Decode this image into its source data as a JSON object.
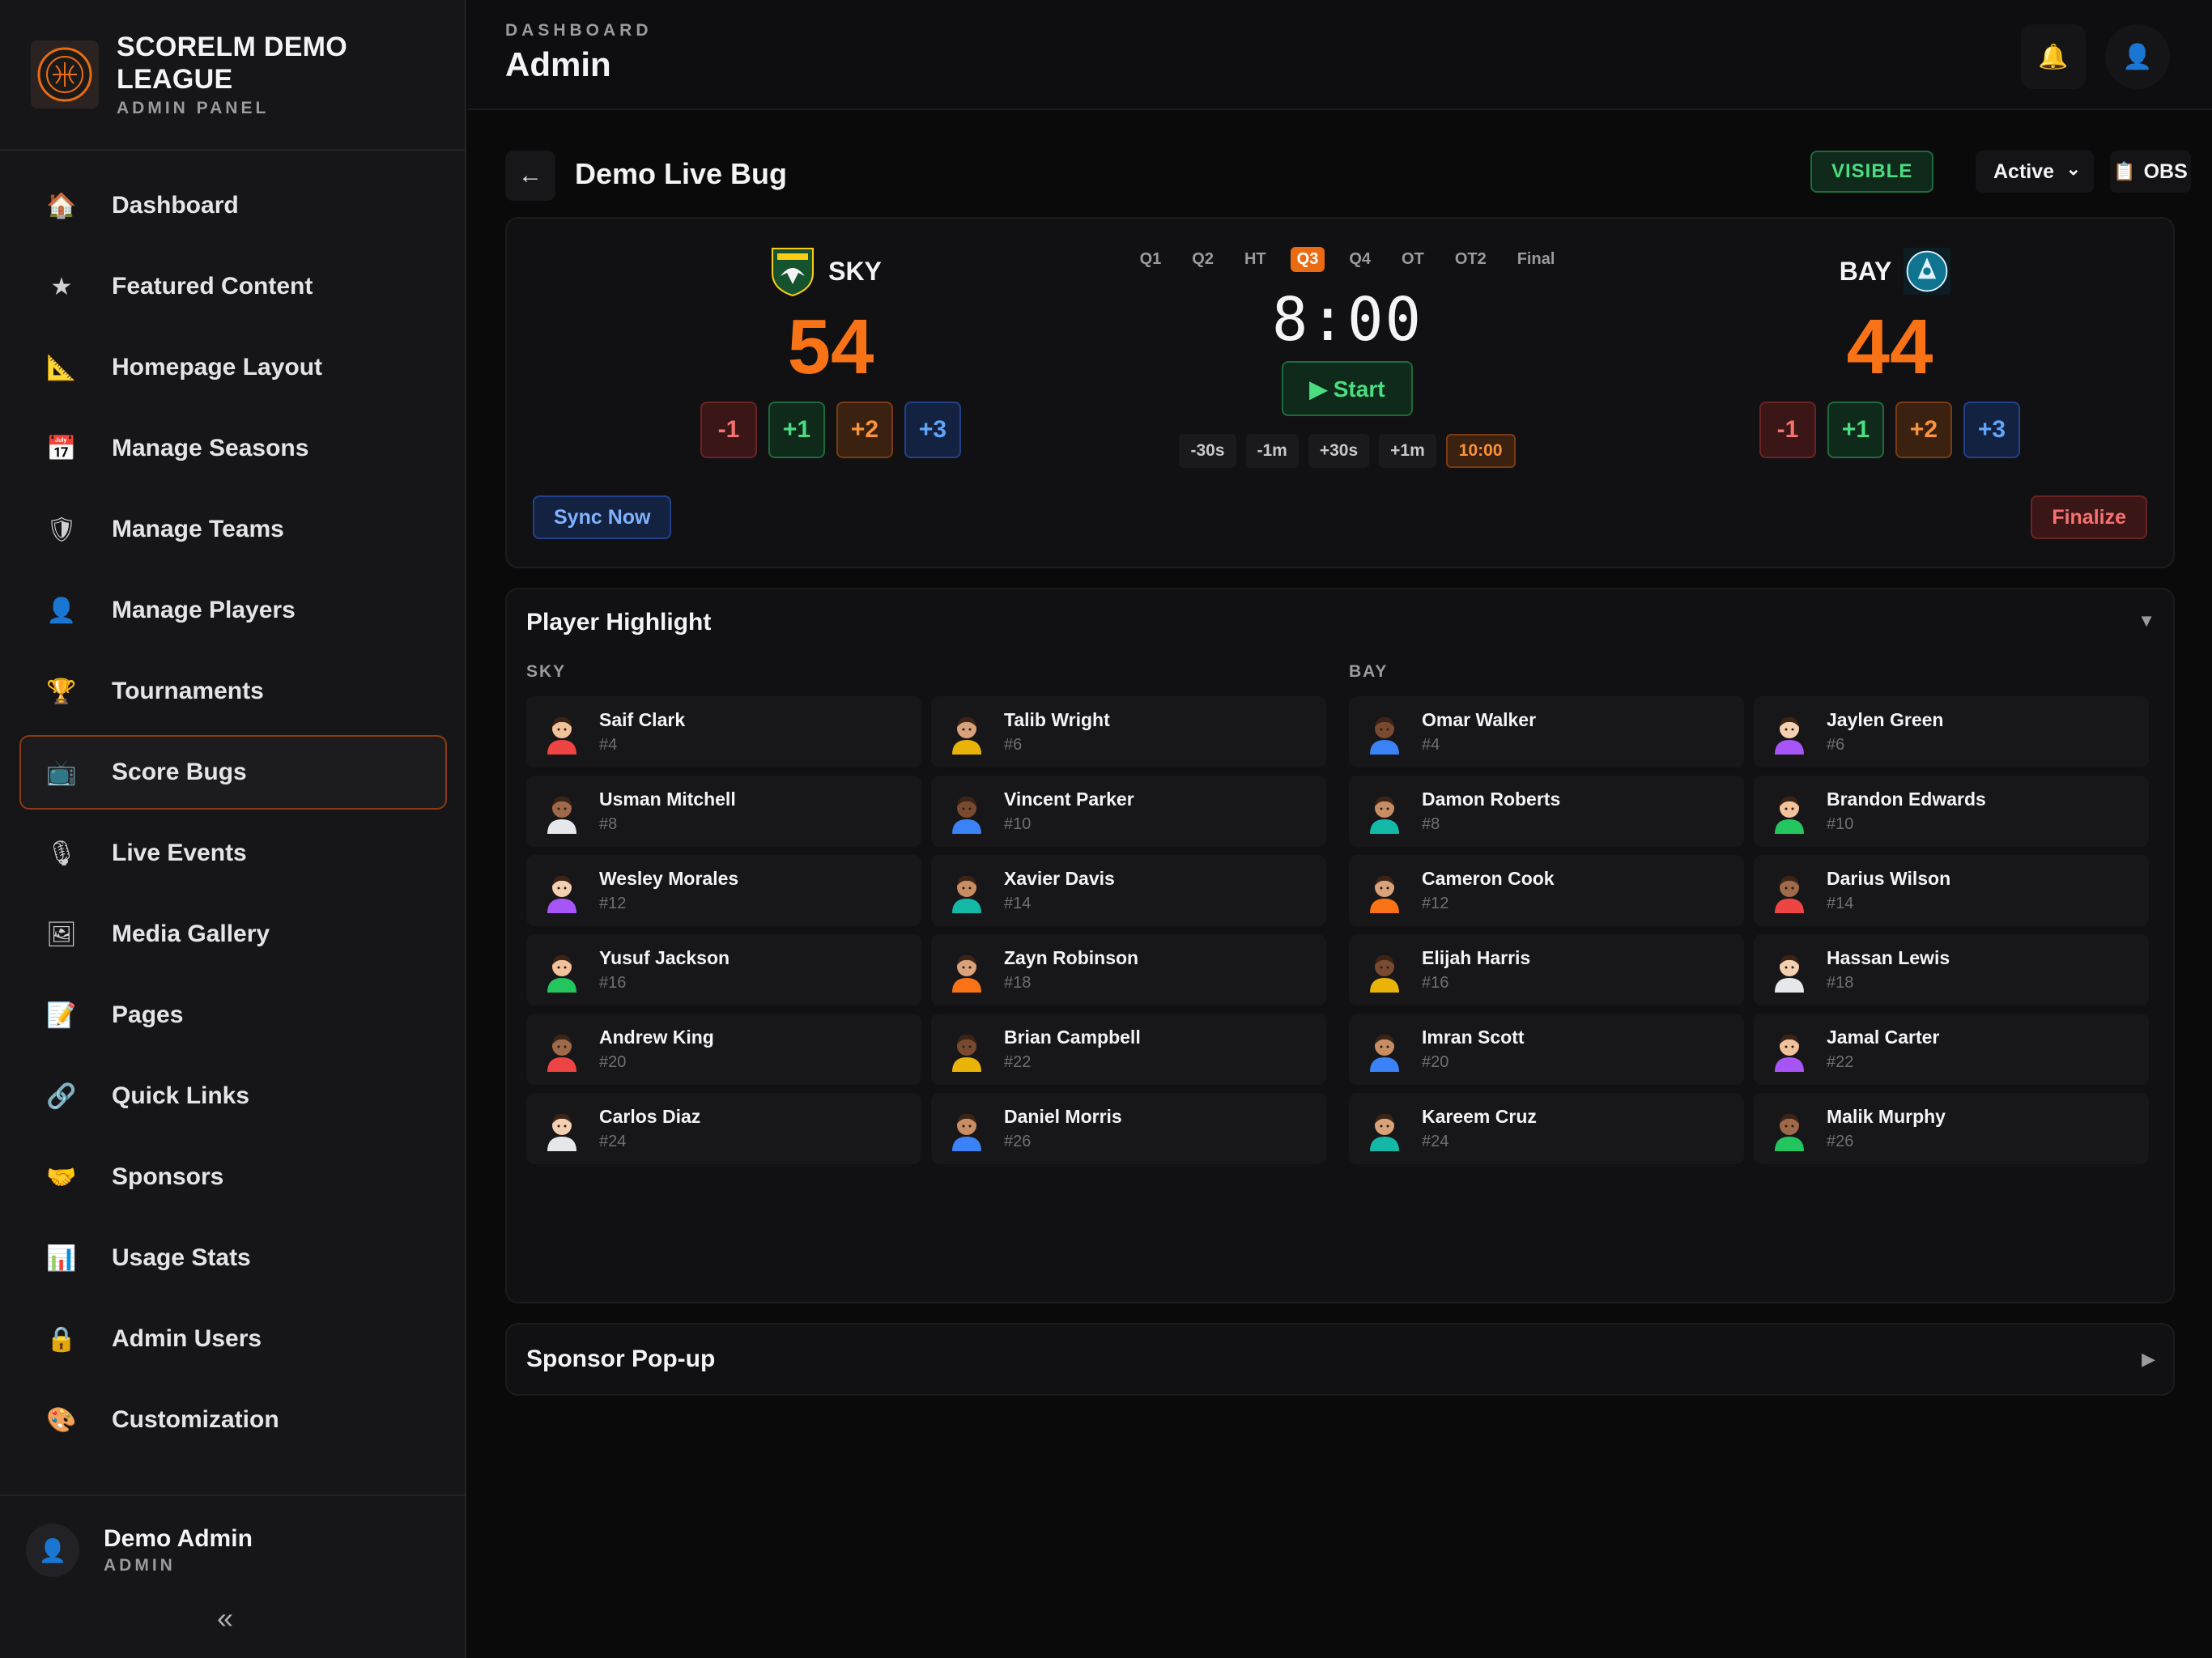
{
  "brand": {
    "title": "SCORELM DEMO LEAGUE",
    "subtitle": "ADMIN PANEL"
  },
  "sidebar": {
    "items": [
      {
        "label": "Dashboard",
        "icon": "house-icon",
        "glyph": "🏠"
      },
      {
        "label": "Featured Content",
        "icon": "star-icon",
        "glyph": "★"
      },
      {
        "label": "Homepage Layout",
        "icon": "ruler-icon",
        "glyph": "📐"
      },
      {
        "label": "Manage Seasons",
        "icon": "calendar-icon",
        "glyph": "📅"
      },
      {
        "label": "Manage Teams",
        "icon": "shield-icon",
        "glyph": "🛡"
      },
      {
        "label": "Manage Players",
        "icon": "person-icon",
        "glyph": "👤"
      },
      {
        "label": "Tournaments",
        "icon": "trophy-icon",
        "glyph": "🏆"
      },
      {
        "label": "Score Bugs",
        "icon": "tv-icon",
        "glyph": "📺",
        "active": true
      },
      {
        "label": "Live Events",
        "icon": "microphone-icon",
        "glyph": "🎙"
      },
      {
        "label": "Media Gallery",
        "icon": "image-icon",
        "glyph": "🖼"
      },
      {
        "label": "Pages",
        "icon": "memo-icon",
        "glyph": "📝"
      },
      {
        "label": "Quick Links",
        "icon": "link-icon",
        "glyph": "🔗"
      },
      {
        "label": "Sponsors",
        "icon": "handshake-icon",
        "glyph": "🤝"
      },
      {
        "label": "Usage Stats",
        "icon": "bar-chart-icon",
        "glyph": "📊"
      },
      {
        "label": "Admin Users",
        "icon": "lock-icon",
        "glyph": "🔒"
      },
      {
        "label": "Customization",
        "icon": "palette-icon",
        "glyph": "🎨"
      }
    ],
    "user": {
      "name": "Demo Admin",
      "role": "ADMIN"
    },
    "collapse": "«"
  },
  "topbar": {
    "breadcrumb": "DASHBOARD",
    "title": "Admin"
  },
  "bug": {
    "back": "←",
    "title": "Demo Live Bug",
    "visibility": "VISIBLE",
    "status": "Active",
    "obs_label": "OBS"
  },
  "scoreboard": {
    "home": {
      "name": "SKY",
      "score": "54"
    },
    "away": {
      "name": "BAY",
      "score": "44"
    },
    "score_buttons": [
      "-1",
      "+1",
      "+2",
      "+3"
    ],
    "periods": [
      "Q1",
      "Q2",
      "HT",
      "Q3",
      "Q4",
      "OT",
      "OT2",
      "Final"
    ],
    "active_period": "Q3",
    "clock": "8:00",
    "start_label": "▶ Start",
    "adjustments": [
      "-30s",
      "-1m",
      "+30s",
      "+1m"
    ],
    "preset": "10:00",
    "sync_label": "Sync Now",
    "finalize_label": "Finalize"
  },
  "highlight": {
    "title": "Player Highlight",
    "toggle": "▼",
    "home_label": "SKY",
    "away_label": "BAY",
    "home_players": [
      {
        "name": "Saif Clark",
        "num": "#4"
      },
      {
        "name": "Talib Wright",
        "num": "#6"
      },
      {
        "name": "Usman Mitchell",
        "num": "#8"
      },
      {
        "name": "Vincent Parker",
        "num": "#10"
      },
      {
        "name": "Wesley Morales",
        "num": "#12"
      },
      {
        "name": "Xavier Davis",
        "num": "#14"
      },
      {
        "name": "Yusuf Jackson",
        "num": "#16"
      },
      {
        "name": "Zayn Robinson",
        "num": "#18"
      },
      {
        "name": "Andrew King",
        "num": "#20"
      },
      {
        "name": "Brian Campbell",
        "num": "#22"
      },
      {
        "name": "Carlos Diaz",
        "num": "#24"
      },
      {
        "name": "Daniel Morris",
        "num": "#26"
      }
    ],
    "away_players": [
      {
        "name": "Omar Walker",
        "num": "#4"
      },
      {
        "name": "Jaylen Green",
        "num": "#6"
      },
      {
        "name": "Damon Roberts",
        "num": "#8"
      },
      {
        "name": "Brandon Edwards",
        "num": "#10"
      },
      {
        "name": "Cameron Cook",
        "num": "#12"
      },
      {
        "name": "Darius Wilson",
        "num": "#14"
      },
      {
        "name": "Elijah Harris",
        "num": "#16"
      },
      {
        "name": "Hassan Lewis",
        "num": "#18"
      },
      {
        "name": "Imran Scott",
        "num": "#20"
      },
      {
        "name": "Jamal Carter",
        "num": "#22"
      },
      {
        "name": "Kareem Cruz",
        "num": "#24"
      },
      {
        "name": "Malik Murphy",
        "num": "#26"
      }
    ]
  },
  "sponsor_popup": {
    "title": "Sponsor Pop-up",
    "toggle": "▶"
  },
  "colors": {
    "accent": "#f97316",
    "success": "#4ade80",
    "danger": "#f87171",
    "info": "#60a5fa"
  }
}
